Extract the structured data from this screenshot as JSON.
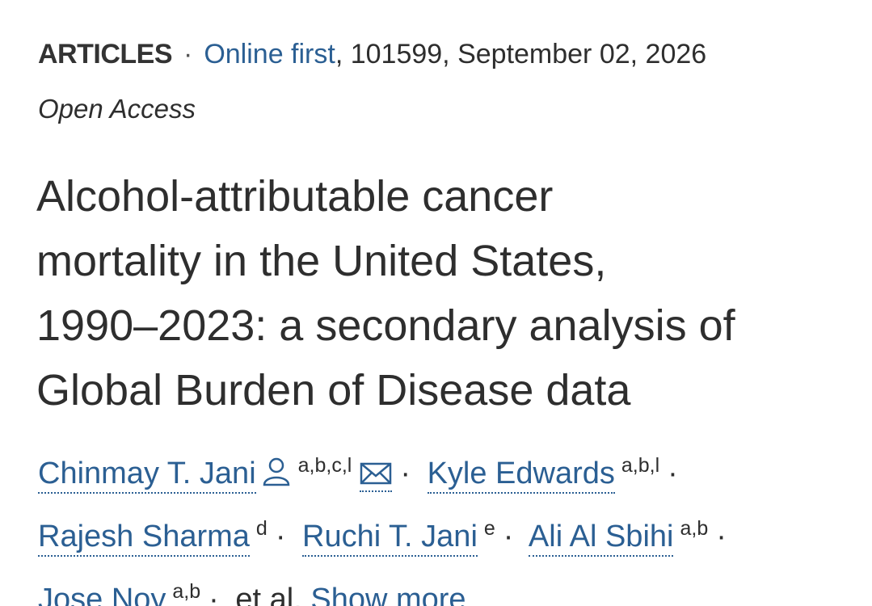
{
  "header": {
    "section": "ARTICLES",
    "separator": "·",
    "status": "Online first",
    "details": ", 101599, September 02, 2026"
  },
  "access": "Open Access",
  "title": [
    "Alcohol-attributable cancer",
    "mortality in the United States,",
    "1990–2023: a secondary analysis of",
    "Global Burden of Disease data"
  ],
  "authors": [
    {
      "name": "Chinmay T. Jani",
      "affiliations": "a,b,c,l"
    },
    {
      "name": "Kyle Edwards",
      "affiliations": "a,b,l"
    },
    {
      "name": "Rajesh Sharma",
      "affiliations": "d"
    },
    {
      "name": "Ruchi T. Jani",
      "affiliations": "e"
    },
    {
      "name": "Ali Al Sbihi",
      "affiliations": "a,b"
    },
    {
      "name": "Jose Noy",
      "affiliations": "a,b"
    }
  ],
  "et_al": "et al.",
  "show_more": "Show more"
}
